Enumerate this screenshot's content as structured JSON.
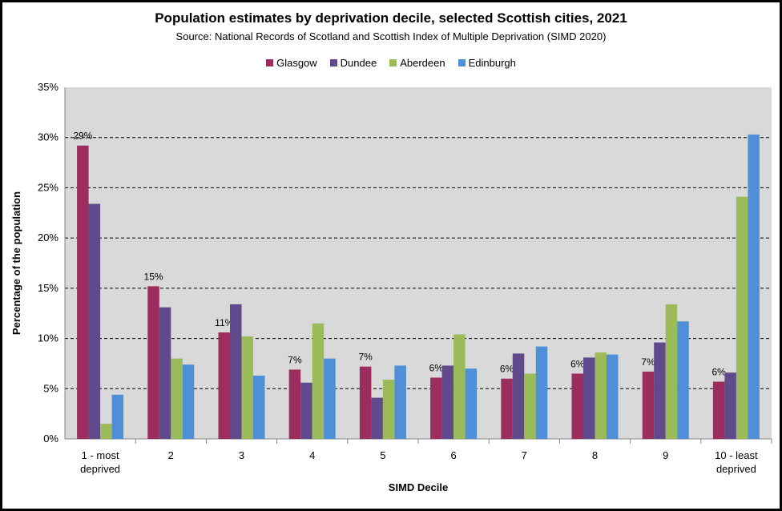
{
  "chart_data": {
    "type": "bar",
    "title": "Population estimates by deprivation decile, selected Scottish cities, 2021",
    "subtitle": "Source: National Records of Scotland and Scottish Index of Multiple Deprivation (SIMD 2020)",
    "xlabel": "SIMD Decile",
    "ylabel": "Percentage of the population",
    "ylim": [
      0,
      35
    ],
    "yticks": [
      "0%",
      "5%",
      "10%",
      "15%",
      "20%",
      "25%",
      "30%",
      "35%"
    ],
    "grid": true,
    "legend": "top",
    "categories": [
      [
        "1 - most",
        "deprived"
      ],
      [
        "2"
      ],
      [
        "3"
      ],
      [
        "4"
      ],
      [
        "5"
      ],
      [
        "6"
      ],
      [
        "7"
      ],
      [
        "8"
      ],
      [
        "9"
      ],
      [
        "10 - least",
        "deprived"
      ]
    ],
    "series": [
      {
        "name": "Glasgow",
        "color": "#9b2d5f",
        "values": [
          29.2,
          15.2,
          10.6,
          6.9,
          7.2,
          6.1,
          6.0,
          6.5,
          6.7,
          5.7
        ],
        "labels": [
          "29%",
          "15%",
          "11%",
          "7%",
          "7%",
          "6%",
          "6%",
          "6%",
          "7%",
          "6%"
        ]
      },
      {
        "name": "Dundee",
        "color": "#604a8b",
        "values": [
          23.4,
          13.1,
          13.4,
          5.6,
          4.1,
          7.3,
          8.5,
          8.1,
          9.6,
          6.6
        ]
      },
      {
        "name": "Aberdeen",
        "color": "#9bbb59",
        "values": [
          1.5,
          8.0,
          10.2,
          11.5,
          5.9,
          10.4,
          6.5,
          8.6,
          13.4,
          24.1
        ]
      },
      {
        "name": "Edinburgh",
        "color": "#4f8fd8",
        "values": [
          4.4,
          7.4,
          6.3,
          8.0,
          7.3,
          7.0,
          9.2,
          8.4,
          11.7,
          30.3
        ]
      }
    ]
  }
}
